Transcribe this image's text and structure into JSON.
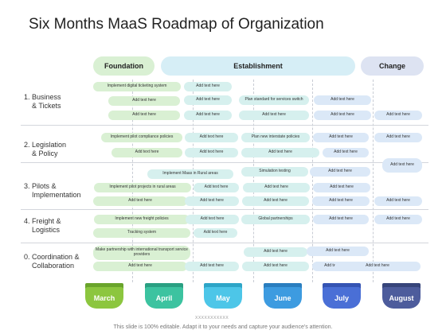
{
  "title": "Six Months MaaS Roadmap of Organization",
  "phases": [
    {
      "label": "Foundation",
      "color": "#d9f0d3"
    },
    {
      "label": "Establishment",
      "color": "#d6eef6"
    },
    {
      "label": "Change",
      "color": "#dde3f2"
    }
  ],
  "categories": [
    {
      "line1": "1. Business",
      "line2": "& Tickets"
    },
    {
      "line1": "2. Legislation",
      "line2": "& Policy"
    },
    {
      "line1": "3. Pilots &",
      "line2": "Implementation"
    },
    {
      "line1": "4. Freight &",
      "line2": "Logistics"
    },
    {
      "line1": "0. Coordination &",
      "line2": "Collaboration"
    }
  ],
  "bars": [
    {
      "text": "Implement digital ticketing system",
      "color": "green"
    },
    {
      "text": "Add text here",
      "color": "teal"
    },
    {
      "text": "Add text here",
      "color": "green"
    },
    {
      "text": "Add text here",
      "color": "teal"
    },
    {
      "text": "Plan standard for services switch",
      "color": "teal"
    },
    {
      "text": "Add text here",
      "color": "blue"
    },
    {
      "text": "Add text here",
      "color": "green"
    },
    {
      "text": "Add text here",
      "color": "teal"
    },
    {
      "text": "Add text here",
      "color": "teal"
    },
    {
      "text": "Add text here",
      "color": "blue"
    },
    {
      "text": "Add text here",
      "color": "blue"
    },
    {
      "text": "Implement pilot compliance policies",
      "color": "green"
    },
    {
      "text": "Add text here",
      "color": "teal"
    },
    {
      "text": "Plan new interstate policies",
      "color": "teal"
    },
    {
      "text": "Add text here",
      "color": "blue"
    },
    {
      "text": "Add text here",
      "color": "blue"
    },
    {
      "text": "Add text here",
      "color": "green"
    },
    {
      "text": "Add text here",
      "color": "teal"
    },
    {
      "text": "Add text here",
      "color": "teal"
    },
    {
      "text": "Add text here",
      "color": "blue"
    },
    {
      "text": "Add text here",
      "color": "blue"
    },
    {
      "text": "Implement Maas in Rural areas",
      "color": "teal"
    },
    {
      "text": "Simulation testing",
      "color": "teal"
    },
    {
      "text": "Add text here",
      "color": "blue"
    },
    {
      "text": "Implement pilot projects in rural areas",
      "color": "green"
    },
    {
      "text": "Add text here",
      "color": "teal"
    },
    {
      "text": "Add text here",
      "color": "teal"
    },
    {
      "text": "Add text here",
      "color": "blue"
    },
    {
      "text": "Add text here",
      "color": "green"
    },
    {
      "text": "Add text here",
      "color": "teal"
    },
    {
      "text": "Add text here",
      "color": "teal"
    },
    {
      "text": "Add text here",
      "color": "blue"
    },
    {
      "text": "Add text here",
      "color": "blue"
    },
    {
      "text": "Implement new freight policies",
      "color": "green"
    },
    {
      "text": "Add text here",
      "color": "teal"
    },
    {
      "text": "Global partnerships",
      "color": "teal"
    },
    {
      "text": "Add text here",
      "color": "blue"
    },
    {
      "text": "Add text here",
      "color": "blue"
    },
    {
      "text": "Tracking system",
      "color": "green"
    },
    {
      "text": "Add text here",
      "color": "teal"
    },
    {
      "text": "Make partnership with international transport service providers",
      "color": "green"
    },
    {
      "text": "Add text here",
      "color": "teal"
    },
    {
      "text": "Add text here",
      "color": "blue"
    },
    {
      "text": "Add text here",
      "color": "green"
    },
    {
      "text": "Add text here",
      "color": "teal"
    },
    {
      "text": "Add text here",
      "color": "teal"
    },
    {
      "text": "Add text here",
      "color": "blue"
    },
    {
      "text": "Add text here",
      "color": "blue"
    }
  ],
  "months": [
    {
      "label": "March",
      "color": "#8cc63f",
      "cap": "#6aa42c"
    },
    {
      "label": "April",
      "color": "#3cc3a0",
      "cap": "#2a9f82"
    },
    {
      "label": "May",
      "color": "#4dc6e8",
      "cap": "#2ea5c7"
    },
    {
      "label": "June",
      "color": "#3d9be0",
      "cap": "#2a7ebf"
    },
    {
      "label": "July",
      "color": "#4a6fd6",
      "cap": "#3554b3"
    },
    {
      "label": "August",
      "color": "#4d5c9c",
      "cap": "#37457a"
    }
  ],
  "placeholder": "XXXXXXXXXXX",
  "footer": "This slide is 100% editable. Adapt it to your needs and capture your audience's attention."
}
